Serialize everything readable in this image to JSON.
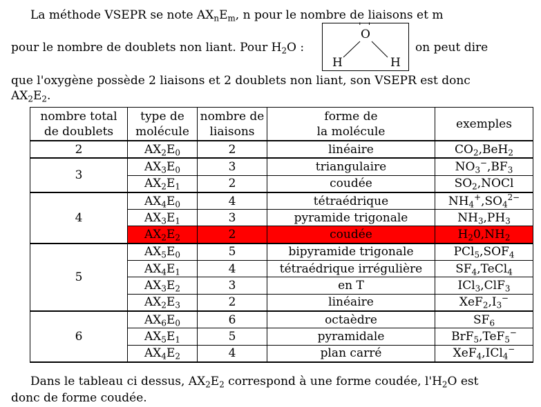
{
  "intro": {
    "l1_a": "La méthode VSEPR se note AX",
    "l1_sub1": "n",
    "l1_b": "E",
    "l1_sub2": "m",
    "l1_c": ", n pour le nombre de liaisons et m",
    "l2_a": "pour le nombre de doublets non liant. Pour H",
    "l2_sub": "2",
    "l2_b": "O :",
    "l2_c": "on peut dire",
    "l3": "que l'oxygène possède 2 liaisons et 2 doublets non liant, son VSEPR est donc",
    "l4_a": "AX",
    "l4_sub1": "2",
    "l4_b": "E",
    "l4_sub2": "2",
    "l4_c": "."
  },
  "molecule": {
    "center": "O",
    "left": "H",
    "right": "H",
    "lone_pairs": "' '"
  },
  "table": {
    "headers": {
      "total_1": "nombre total",
      "total_2": "de doublets",
      "type_1": "type de",
      "type_2": "molécule",
      "liaisons_1": "nombre de",
      "liaisons_2": "liaisons",
      "forme_1": "forme de",
      "forme_2": "la molécule",
      "exemples": "exemples"
    },
    "groups": [
      "2",
      "3",
      "4",
      "5",
      "6"
    ],
    "rows": [
      {
        "x": "2",
        "e": "0",
        "n": "2",
        "forme": "linéaire",
        "ex": "CO<sub>2</sub>,BeH<sub>2</sub>"
      },
      {
        "x": "3",
        "e": "0",
        "n": "3",
        "forme": "triangulaire",
        "ex": "NO<sub>3</sub><sup>−</sup>,BF<sub>3</sub>"
      },
      {
        "x": "2",
        "e": "1",
        "n": "2",
        "forme": "coudée",
        "ex": "SO<sub>2</sub>,NOCl"
      },
      {
        "x": "4",
        "e": "0",
        "n": "4",
        "forme": "tétraédrique",
        "ex": "NH<sub>4</sub><sup>+</sup>,SO<sub>4</sub><sup>2−</sup>"
      },
      {
        "x": "3",
        "e": "1",
        "n": "3",
        "forme": "pyramide trigonale",
        "ex": "NH<sub>3</sub>,PH<sub>3</sub>"
      },
      {
        "x": "2",
        "e": "2",
        "n": "2",
        "forme": "coudée",
        "ex": "H<sub>2</sub>0,NH<sub>2</sub>"
      },
      {
        "x": "5",
        "e": "0",
        "n": "5",
        "forme": "bipyramide trigonale",
        "ex": "PCl<sub>5</sub>,SOF<sub>4</sub>"
      },
      {
        "x": "4",
        "e": "1",
        "n": "4",
        "forme": "tétraédrique irrégulière",
        "ex": "SF<sub>4</sub>,TeCl<sub>4</sub>"
      },
      {
        "x": "3",
        "e": "2",
        "n": "3",
        "forme": "en T",
        "ex": "ICl<sub>3</sub>,ClF<sub>3</sub>"
      },
      {
        "x": "2",
        "e": "3",
        "n": "2",
        "forme": "linéaire",
        "ex": "XeF<sub>2</sub>,I<sub>3</sub><sup>−</sup>"
      },
      {
        "x": "6",
        "e": "0",
        "n": "6",
        "forme": "octaèdre",
        "ex": "SF<sub>6</sub>"
      },
      {
        "x": "5",
        "e": "1",
        "n": "5",
        "forme": "pyramidale",
        "ex": "BrF<sub>5</sub>,TeF<sub>5</sub><sup>−</sup>"
      },
      {
        "x": "4",
        "e": "2",
        "n": "4",
        "forme": "plan carré",
        "ex": "XeF<sub>4</sub>,ICl<sub>4</sub><sup>−</sup>"
      }
    ],
    "highlight_color": "#ff0000"
  },
  "outro": {
    "l1_a": "Dans le tableau ci dessus, AX",
    "l1_sub1": "2",
    "l1_b": "E",
    "l1_sub2": "2",
    "l1_c": " correspond à une forme coudée, l'H",
    "l1_sub3": "2",
    "l1_d": "O est",
    "l2": "donc de forme coudée."
  }
}
